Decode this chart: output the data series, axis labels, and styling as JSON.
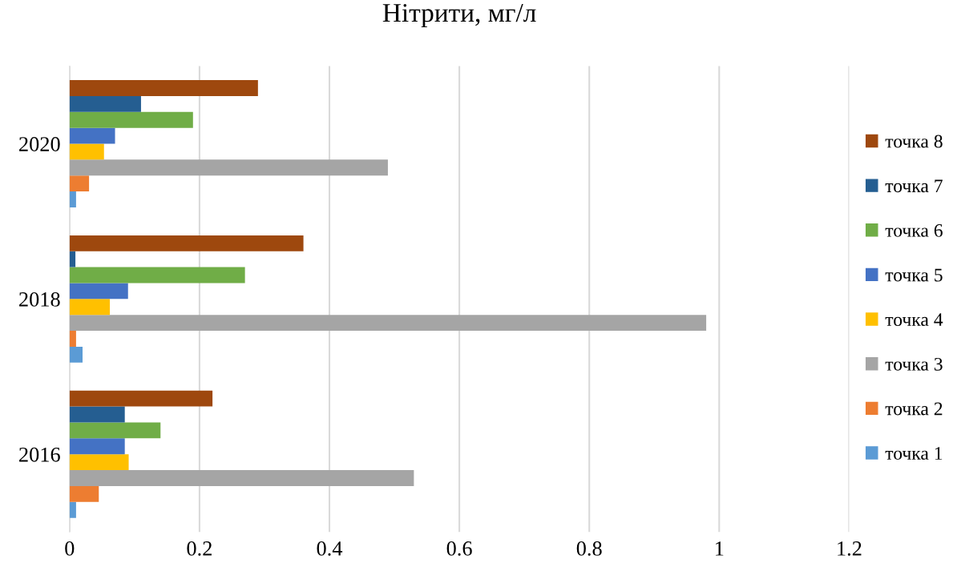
{
  "chart_data": {
    "type": "bar",
    "orientation": "horizontal",
    "title": "Нітрити, мг/л",
    "categories": [
      "2020",
      "2018",
      "2016"
    ],
    "series": [
      {
        "name": "точка 1",
        "color": "#5b9bd5",
        "values": [
          0.01,
          0.02,
          0.01
        ]
      },
      {
        "name": "точка 2",
        "color": "#ed7d31",
        "values": [
          0.03,
          0.01,
          0.045
        ]
      },
      {
        "name": "точка 3",
        "color": "#a5a5a5",
        "values": [
          0.49,
          0.98,
          0.53
        ]
      },
      {
        "name": "точка 4",
        "color": "#ffc000",
        "values": [
          0.053,
          0.062,
          0.091
        ]
      },
      {
        "name": "точка 5",
        "color": "#4472c4",
        "values": [
          0.07,
          0.09,
          0.085
        ]
      },
      {
        "name": "точка 6",
        "color": "#70ad47",
        "values": [
          0.19,
          0.27,
          0.14
        ]
      },
      {
        "name": "точка 7",
        "color": "#255e91",
        "values": [
          0.11,
          0.009,
          0.085
        ]
      },
      {
        "name": "точка 8",
        "color": "#9e480e",
        "values": [
          0.29,
          0.36,
          0.22
        ]
      }
    ],
    "xlim": [
      0,
      1.2
    ],
    "xticks": [
      0,
      0.2,
      0.4,
      0.6,
      0.8,
      1,
      1.2
    ],
    "grid": "x",
    "legend": "right"
  }
}
